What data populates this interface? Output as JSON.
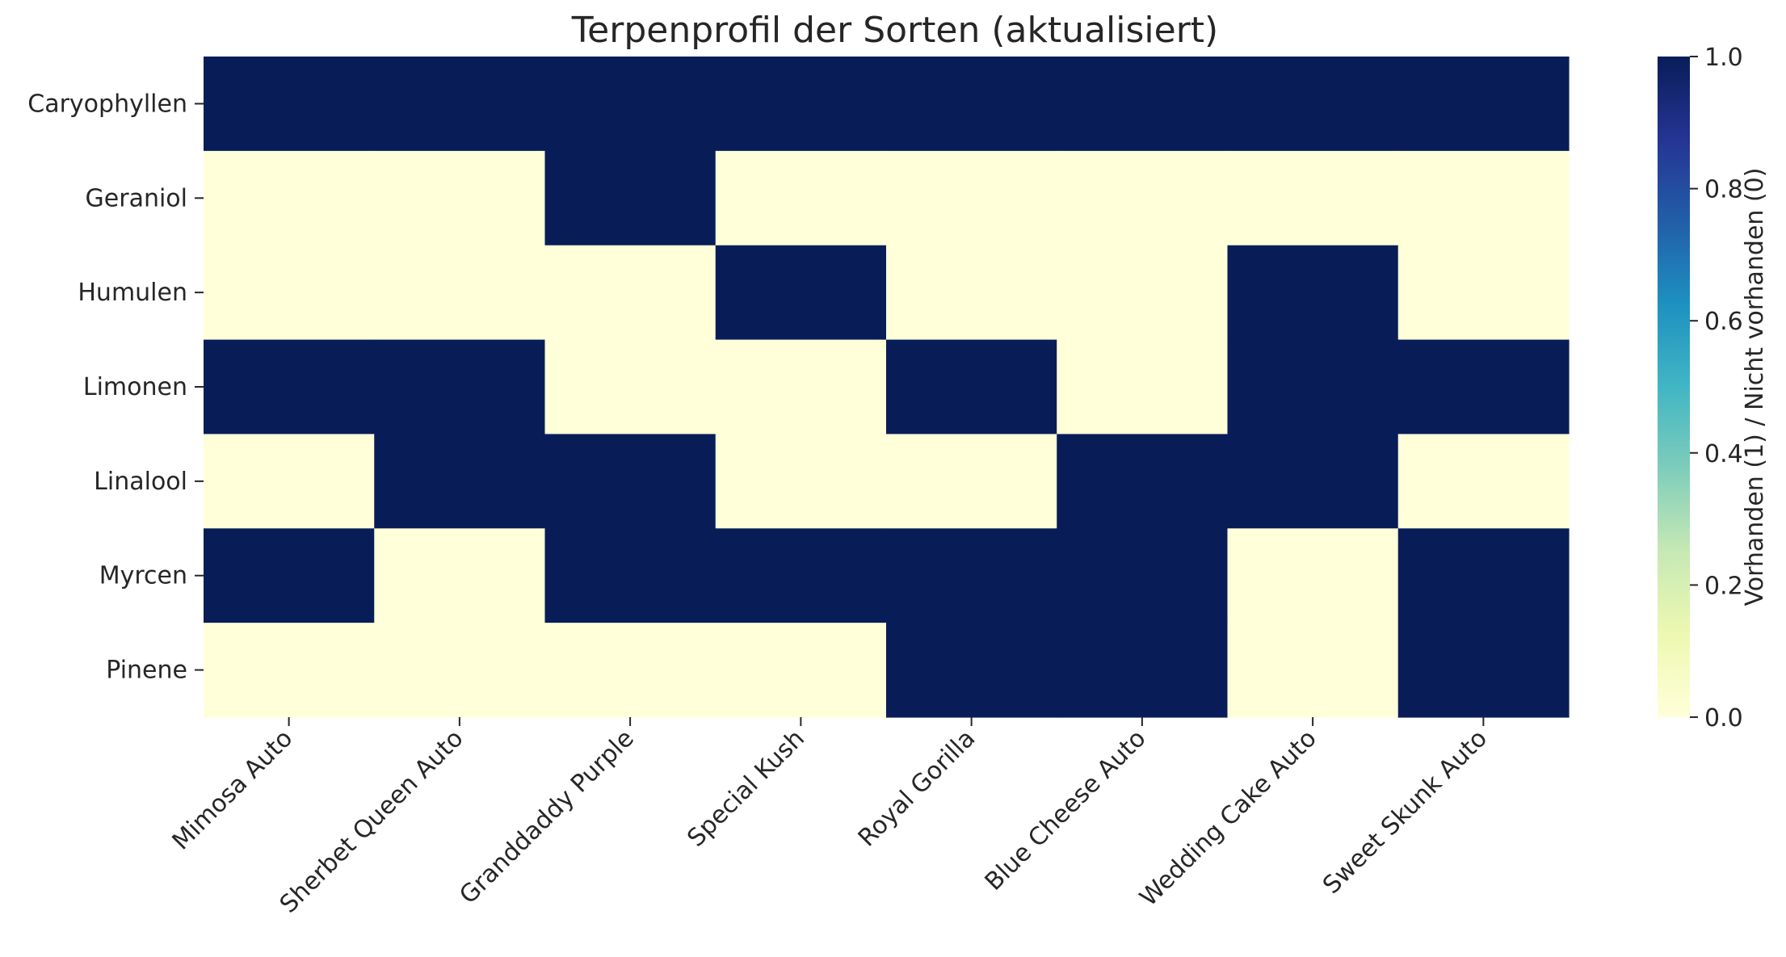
{
  "chart_data": {
    "type": "heatmap",
    "title": "Terpenprofil der Sorten (aktualisiert)",
    "xlabel": "",
    "ylabel": "",
    "x_categories": [
      "Mimosa Auto",
      "Sherbet Queen Auto",
      "Granddaddy Purple",
      "Special Kush",
      "Royal Gorilla",
      "Blue Cheese Auto",
      "Wedding Cake Auto",
      "Sweet Skunk Auto"
    ],
    "y_categories": [
      "Caryophyllen",
      "Geraniol",
      "Humulen",
      "Limonen",
      "Linalool",
      "Myrcen",
      "Pinene"
    ],
    "values": [
      [
        1,
        1,
        1,
        1,
        1,
        1,
        1,
        1
      ],
      [
        0,
        0,
        1,
        0,
        0,
        0,
        0,
        0
      ],
      [
        0,
        0,
        0,
        1,
        0,
        0,
        1,
        0
      ],
      [
        1,
        1,
        0,
        0,
        1,
        0,
        1,
        1
      ],
      [
        0,
        1,
        1,
        0,
        0,
        1,
        1,
        0
      ],
      [
        1,
        0,
        1,
        1,
        1,
        1,
        0,
        1
      ],
      [
        0,
        0,
        0,
        0,
        1,
        1,
        0,
        1
      ]
    ],
    "colormap": "YlGnBu",
    "colormap_stops": [
      "#ffffd9",
      "#edf8b1",
      "#c7e9b4",
      "#7fcdbb",
      "#41b6c4",
      "#1d91c0",
      "#225ea8",
      "#253494",
      "#081d58"
    ],
    "value_range": [
      0,
      1
    ],
    "colorbar": {
      "label": "Vorhanden (1) / Nicht vorhanden (0)",
      "ticks": [
        "0.0",
        "0.2",
        "0.4",
        "0.6",
        "0.8",
        "1.0"
      ],
      "tick_values": [
        0,
        0.2,
        0.4,
        0.6,
        0.8,
        1.0
      ]
    },
    "grid": false
  }
}
